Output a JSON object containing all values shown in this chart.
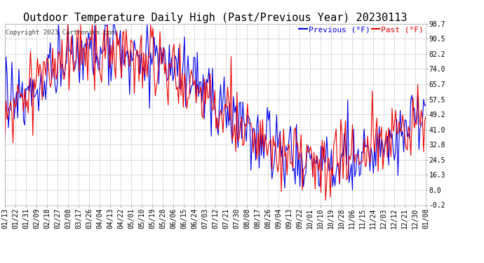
{
  "title": "Outdoor Temperature Daily High (Past/Previous Year) 20230113",
  "copyright": "Copyright 2023 Cartronics.com",
  "legend_previous": "Previous (°F)",
  "legend_past": "Past (°F)",
  "color_previous": "#0000ee",
  "color_past": "#ee0000",
  "background_color": "#ffffff",
  "plot_bg_color": "#ffffff",
  "yticks": [
    98.7,
    90.5,
    82.2,
    74.0,
    65.7,
    57.5,
    49.2,
    41.0,
    32.8,
    24.5,
    16.3,
    8.0,
    -0.2
  ],
  "ylim": [
    -0.2,
    98.7
  ],
  "xtick_labels": [
    "01/13",
    "01/22",
    "01/31",
    "02/09",
    "02/18",
    "02/27",
    "03/08",
    "03/17",
    "03/26",
    "04/04",
    "04/13",
    "04/22",
    "05/01",
    "05/10",
    "05/19",
    "05/28",
    "06/06",
    "06/15",
    "06/24",
    "07/03",
    "07/12",
    "07/21",
    "07/30",
    "08/08",
    "08/17",
    "08/26",
    "09/04",
    "09/13",
    "09/22",
    "10/01",
    "10/10",
    "10/19",
    "10/28",
    "11/06",
    "11/15",
    "11/24",
    "12/03",
    "12/12",
    "12/21",
    "12/30",
    "01/08"
  ],
  "title_fontsize": 11,
  "tick_fontsize": 7,
  "copyright_fontsize": 6.5,
  "legend_fontsize": 8,
  "grid_color": "#bbbbbb",
  "grid_style": "--",
  "line_width": 0.8,
  "n_days": 362
}
